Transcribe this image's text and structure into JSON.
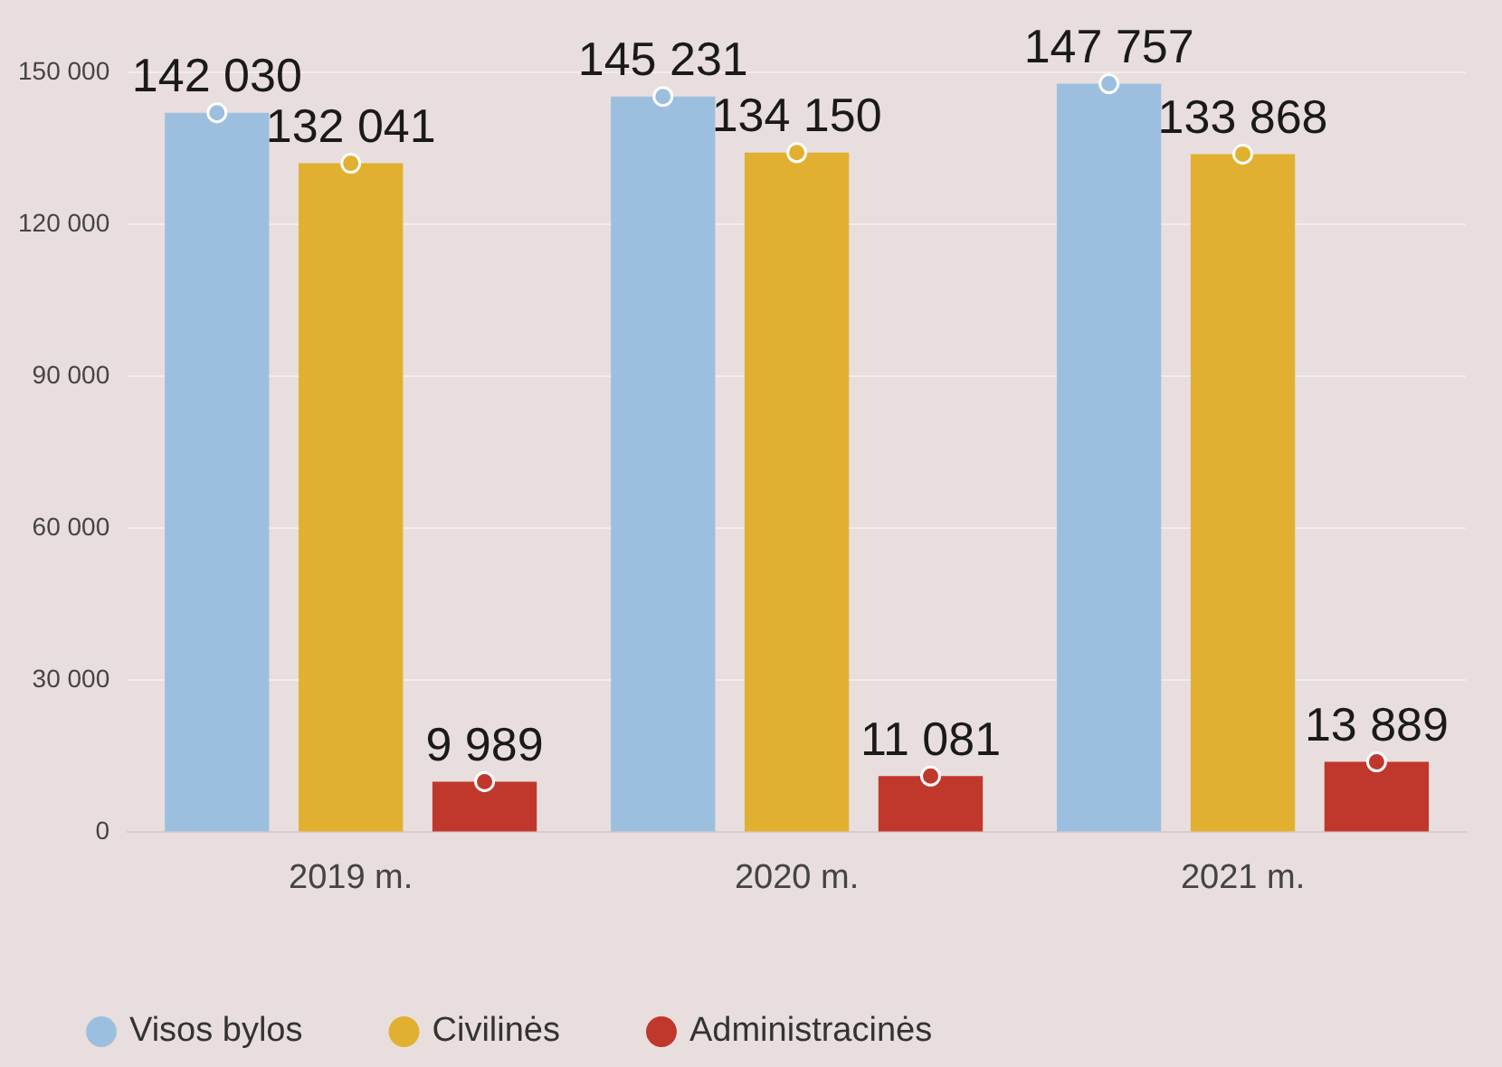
{
  "chart_data": {
    "type": "bar",
    "categories": [
      "2019 m.",
      "2020 m.",
      "2021 m."
    ],
    "series": [
      {
        "name": "Visos bylos",
        "color": "#9dbfdf",
        "values": [
          142030,
          145231,
          147757
        ],
        "value_labels": [
          "142 030",
          "145 231",
          "147 757"
        ]
      },
      {
        "name": "Civilinės",
        "color": "#e2b030",
        "values": [
          132041,
          134150,
          133868
        ],
        "value_labels": [
          "132 041",
          "134 150",
          "133 868"
        ]
      },
      {
        "name": "Administracinės",
        "color": "#c0372b",
        "values": [
          9989,
          11081,
          13889
        ],
        "value_labels": [
          "9 989",
          "11 081",
          "13 889"
        ]
      },
      {
        "type": "scatter",
        "color": "#9dbfdf",
        "x": [
          "2019 m.",
          "2020 m.",
          "2021 m."
        ],
        "values": [
          142030,
          145231,
          147757
        ]
      },
      {
        "type": "scatter",
        "color": "#e2b030",
        "x": [
          "2019 m.",
          "2020 m.",
          "2021 m."
        ],
        "values": [
          132041,
          134150,
          133868
        ]
      },
      {
        "type": "scatter",
        "color": "#c0372b",
        "x": [
          "2019 m.",
          "2020 m.",
          "2021 m."
        ],
        "values": [
          9989,
          11081,
          13889
        ]
      }
    ],
    "ylim": [
      0,
      150000
    ],
    "yticks": [
      {
        "value": 0,
        "label": "0"
      },
      {
        "value": 30000,
        "label": "30 000"
      },
      {
        "value": 60000,
        "label": "60 000"
      },
      {
        "value": 90000,
        "label": "90 000"
      },
      {
        "value": 120000,
        "label": "120 000"
      },
      {
        "value": 150000,
        "label": "150 000"
      }
    ],
    "grid": "y",
    "legend": "bottom left",
    "marker": "circle"
  }
}
